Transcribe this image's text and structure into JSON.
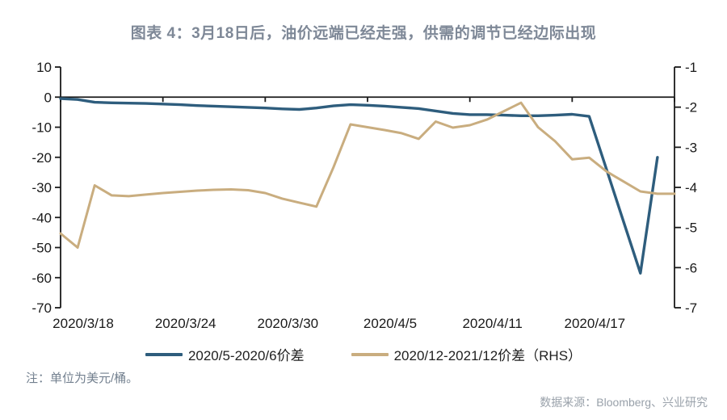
{
  "title": "图表 4：3月18日后，油价远端已经走强，供需的调节已经边际出现",
  "note": "注：单位为美元/桶。",
  "source": "数据来源：Bloomberg、兴业研究",
  "colors": {
    "title_text": "#7e8897",
    "note_text": "#73808f",
    "source_text": "#99a1aa",
    "axis": "#1a1a1a",
    "tick_label": "#1a1a1a",
    "background": "#ffffff"
  },
  "chart_data": {
    "type": "line",
    "title": "图表 4：3月18日后，油价远端已经走强，供需的调节已经边际出现",
    "x": [
      "2020/3/18",
      "2020/3/19",
      "2020/3/20",
      "2020/3/21",
      "2020/3/22",
      "2020/3/23",
      "2020/3/24",
      "2020/3/25",
      "2020/3/26",
      "2020/3/27",
      "2020/3/28",
      "2020/3/29",
      "2020/3/30",
      "2020/3/31",
      "2020/4/1",
      "2020/4/2",
      "2020/4/3",
      "2020/4/4",
      "2020/4/5",
      "2020/4/6",
      "2020/4/7",
      "2020/4/8",
      "2020/4/9",
      "2020/4/10",
      "2020/4/11",
      "2020/4/12",
      "2020/4/13",
      "2020/4/14",
      "2020/4/15",
      "2020/4/16",
      "2020/4/17",
      "2020/4/18",
      "2020/4/19",
      "2020/4/20",
      "2020/4/21",
      "2020/4/22",
      "2020/4/23"
    ],
    "x_tick_labels": [
      "2020/3/18",
      "2020/3/24",
      "2020/3/30",
      "2020/4/5",
      "2020/4/11",
      "2020/4/17"
    ],
    "series": [
      {
        "name": "2020/5-2020/6价差",
        "axis": "left",
        "color": "#2e5d7d",
        "values": [
          -0.5,
          -0.8,
          -1.7,
          -1.9,
          -2.0,
          -2.1,
          -2.3,
          -2.5,
          -2.8,
          -3.0,
          -3.2,
          -3.4,
          -3.6,
          -3.9,
          -4.1,
          -3.6,
          -2.9,
          -2.5,
          -2.7,
          -3.0,
          -3.4,
          -3.8,
          -4.6,
          -5.4,
          -5.8,
          -5.8,
          -6.0,
          -6.2,
          -6.2,
          -6.0,
          -5.7,
          -6.4,
          -23.8,
          -41.2,
          -58.5,
          -20.0,
          null
        ]
      },
      {
        "name": "2020/12-2021/12价差（RHS）",
        "axis": "right",
        "color": "#c9ad7f",
        "values": [
          -5.15,
          -5.5,
          -3.95,
          -4.2,
          -4.22,
          -4.18,
          -4.14,
          -4.11,
          -4.08,
          -4.06,
          -4.05,
          -4.07,
          -4.14,
          -4.28,
          -4.38,
          -4.48,
          -3.5,
          -2.43,
          -2.5,
          -2.57,
          -2.65,
          -2.79,
          -2.36,
          -2.51,
          -2.45,
          -2.31,
          -2.1,
          -1.89,
          -2.5,
          -2.85,
          -3.3,
          -3.26,
          -3.6,
          -3.85,
          -4.1,
          -4.16,
          -4.16
        ]
      }
    ],
    "left_axis": {
      "min": -70,
      "max": 10,
      "ticks": [
        10,
        0,
        -10,
        -20,
        -30,
        -40,
        -50,
        -60,
        -70
      ]
    },
    "right_axis": {
      "min": -7,
      "max": -1,
      "ticks": [
        -1,
        -2,
        -3,
        -4,
        -5,
        -6,
        -7
      ]
    },
    "grid": false,
    "legend_position": "bottom"
  }
}
